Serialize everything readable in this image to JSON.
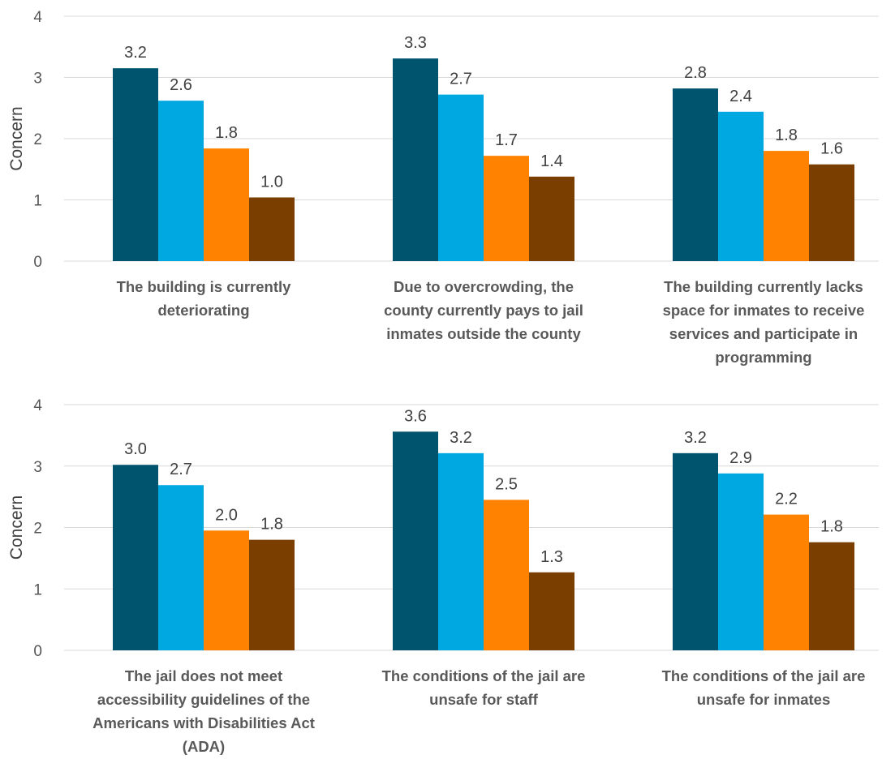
{
  "chart_data": [
    {
      "type": "bar",
      "title": "",
      "xlabel": "",
      "ylabel": "Concern",
      "ylim": [
        0,
        4
      ],
      "yticks": [
        "0",
        "1",
        "2",
        "3",
        "4"
      ],
      "grid": true,
      "legend": "none",
      "series_colors": [
        "#00546e",
        "#00a8e1",
        "#ff8200",
        "#7a3e00"
      ],
      "categories": [
        [
          "The building is currently",
          "deteriorating"
        ],
        [
          "Due to overcrowding, the",
          "county currently pays to jail",
          "inmates outside the county"
        ],
        [
          "The building currently lacks",
          "space for inmates to receive",
          "services and participate in",
          "programming"
        ]
      ],
      "values": [
        [
          3.15,
          2.62,
          1.84,
          1.04
        ],
        [
          3.31,
          2.72,
          1.72,
          1.38
        ],
        [
          2.82,
          2.44,
          1.8,
          1.58
        ]
      ],
      "labels": [
        [
          "3.2",
          "2.6",
          "1.8",
          "1.0"
        ],
        [
          "3.3",
          "2.7",
          "1.7",
          "1.4"
        ],
        [
          "2.8",
          "2.4",
          "1.8",
          "1.6"
        ]
      ]
    },
    {
      "type": "bar",
      "title": "",
      "xlabel": "",
      "ylabel": "Concern",
      "ylim": [
        0,
        4
      ],
      "yticks": [
        "0",
        "1",
        "2",
        "3",
        "4"
      ],
      "grid": true,
      "legend": "none",
      "series_colors": [
        "#00546e",
        "#00a8e1",
        "#ff8200",
        "#7a3e00"
      ],
      "categories": [
        [
          "The jail does not meet",
          "accessibility guidelines of the",
          "Americans with Disabilities Act",
          "(ADA)"
        ],
        [
          "The conditions of the jail are",
          "unsafe for staff"
        ],
        [
          "The conditions of the jail are",
          "unsafe for inmates"
        ]
      ],
      "values": [
        [
          3.02,
          2.69,
          1.95,
          1.8
        ],
        [
          3.56,
          3.21,
          2.45,
          1.27
        ],
        [
          3.21,
          2.88,
          2.21,
          1.76
        ]
      ],
      "labels": [
        [
          "3.0",
          "2.7",
          "2.0",
          "1.8"
        ],
        [
          "3.6",
          "3.2",
          "2.5",
          "1.3"
        ],
        [
          "3.2",
          "2.9",
          "2.2",
          "1.8"
        ]
      ]
    }
  ]
}
